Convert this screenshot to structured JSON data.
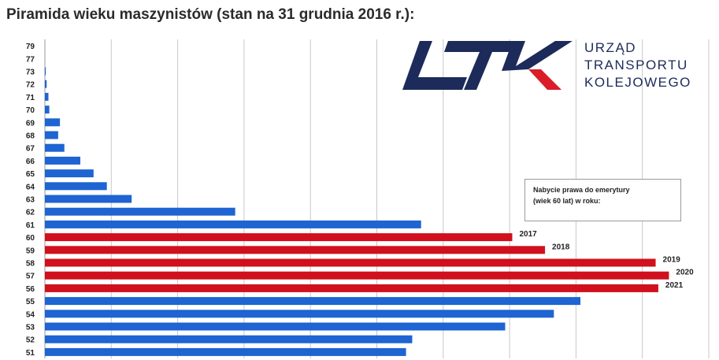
{
  "title": "Piramida wieku maszynistów (stan na 31 grudnia 2016 r.):",
  "logo": {
    "lines": [
      "URZĄD",
      "TRANSPORTU",
      "KOLEJOWEGO"
    ],
    "colors": {
      "navy": "#1c2b5a",
      "red": "#d91e2a"
    }
  },
  "legend": {
    "lines": [
      "Nabycie prawa do emerytury",
      "(wiek 60 lat) w roku:"
    ]
  },
  "chart_data": {
    "type": "bar",
    "orientation": "horizontal",
    "title": "Piramida wieku maszynistów (stan na 31 grudnia 2016 r.):",
    "xlabel": "",
    "ylabel": "",
    "categories": [
      "79",
      "77",
      "73",
      "72",
      "71",
      "70",
      "69",
      "68",
      "67",
      "66",
      "65",
      "64",
      "63",
      "62",
      "61",
      "60",
      "59",
      "58",
      "57",
      "56",
      "55",
      "54",
      "53",
      "52",
      "51"
    ],
    "values": [
      0,
      0,
      1,
      2,
      4,
      5,
      17,
      15,
      22,
      40,
      55,
      70,
      98,
      215,
      425,
      528,
      565,
      690,
      705,
      693,
      605,
      575,
      520,
      415,
      408
    ],
    "colors": [
      "blue",
      "blue",
      "blue",
      "blue",
      "blue",
      "blue",
      "blue",
      "blue",
      "blue",
      "blue",
      "blue",
      "blue",
      "blue",
      "blue",
      "blue",
      "red",
      "red",
      "red",
      "red",
      "red",
      "blue",
      "blue",
      "blue",
      "blue",
      "blue"
    ],
    "bar_labels": {
      "60": "2017",
      "59": "2018",
      "58": "2019",
      "57": "2020",
      "56": "2021"
    },
    "xlim": [
      0,
      750
    ],
    "grid": true,
    "series_colors": {
      "blue": "#1e64d2",
      "red": "#d0101c"
    }
  }
}
